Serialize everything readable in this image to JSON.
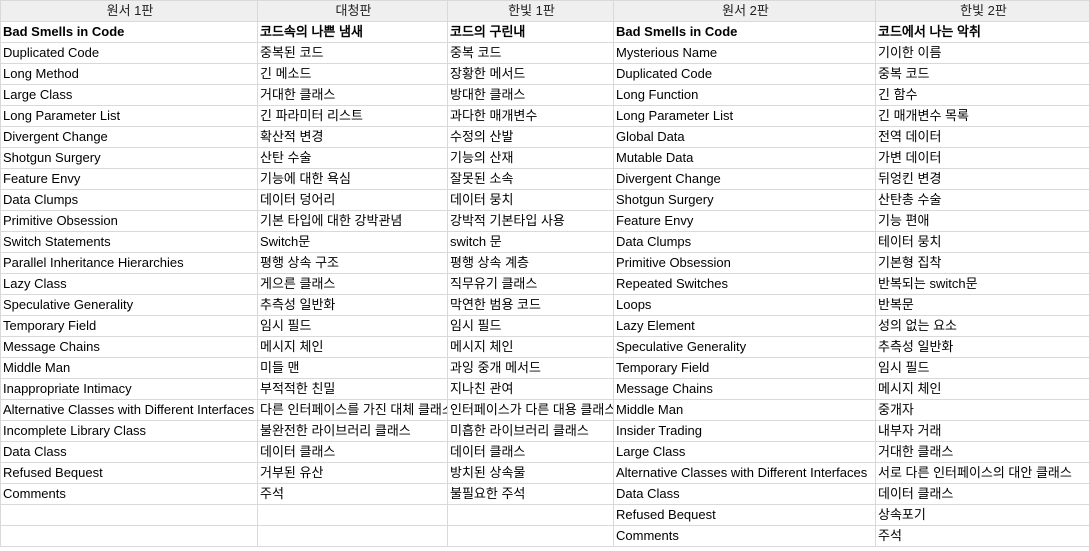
{
  "headers": [
    "원서 1판",
    "대청판",
    "한빛 1판",
    "원서 2판",
    "한빛 2판"
  ],
  "title_row": [
    "Bad Smells in Code",
    "코드속의 나쁜 냄새",
    "코드의 구린내",
    "Bad Smells in Code",
    "코드에서 나는 악취"
  ],
  "rows": [
    [
      "Duplicated Code",
      "중복된 코드",
      "중복 코드",
      "Mysterious Name",
      "기이한 이름"
    ],
    [
      "Long Method",
      "긴 메소드",
      "장황한 메서드",
      "Duplicated Code",
      "중복 코드"
    ],
    [
      "Large Class",
      "거대한 클래스",
      "방대한 클래스",
      "Long Function",
      "긴 함수"
    ],
    [
      "Long Parameter List",
      "긴 파라미터 리스트",
      "과다한 매개변수",
      "Long Parameter List",
      "긴 매개변수 목록"
    ],
    [
      "Divergent Change",
      "확산적 변경",
      "수정의 산발",
      "Global Data",
      "전역 데이터"
    ],
    [
      "Shotgun Surgery",
      "산탄 수술",
      "기능의 산재",
      "Mutable Data",
      "가변 데이터"
    ],
    [
      "Feature Envy",
      "기능에 대한 욕심",
      "잘못된 소속",
      "Divergent Change",
      "뒤엉킨 변경"
    ],
    [
      "Data Clumps",
      "데이터 덩어리",
      "데이터 뭉치",
      "Shotgun Surgery",
      "산탄총 수술"
    ],
    [
      "Primitive Obsession",
      "기본 타입에 대한 강박관념",
      "강박적 기본타입 사용",
      "Feature Envy",
      "기능 편애"
    ],
    [
      "Switch Statements",
      "Switch문",
      " switch 문",
      "Data Clumps",
      "테이터 뭉치"
    ],
    [
      "Parallel Inheritance Hierarchies",
      "평행 상속 구조",
      "평행 상속 계층",
      "Primitive Obsession",
      "기본형 집착"
    ],
    [
      "Lazy Class",
      "게으른 클래스",
      "직무유기 클래스",
      "Repeated Switches",
      "반복되는 switch문"
    ],
    [
      "Speculative Generality",
      "추측성 일반화",
      "막연한 범용 코드",
      "Loops",
      "반복문"
    ],
    [
      "Temporary Field",
      "임시 필드",
      "임시 필드",
      "Lazy Element",
      "성의 없는 요소"
    ],
    [
      "Message Chains",
      "메시지 체인",
      "메시지 체인",
      "Speculative Generality",
      "추측성 일반화"
    ],
    [
      "Middle Man",
      "미들 맨",
      "과잉 중개 메서드",
      "Temporary Field",
      "임시 필드"
    ],
    [
      "Inappropriate Intimacy",
      "부적적한 친밀",
      "지나친 관여",
      "Message Chains",
      "메시지 체인"
    ],
    [
      "Alternative Classes with Different Interfaces",
      "다른 인터페이스를 가진 대체 클래스",
      "인터페이스가 다른 대용 클래스",
      "Middle Man",
      "중개자"
    ],
    [
      "Incomplete Library Class",
      "불완전한 라이브러리 클래스",
      "미흡한 라이브러리 클래스",
      "Insider Trading",
      "내부자 거래"
    ],
    [
      "Data Class",
      "데이터 클래스",
      "데이터 클래스",
      "Large Class",
      "거대한 클래스"
    ],
    [
      "Refused Bequest",
      "거부된 유산",
      "방치된 상속물",
      "Alternative Classes with Different Interfaces",
      "서로 다른 인터페이스의 대안 클래스"
    ],
    [
      "Comments",
      "주석",
      "불필요한 주석",
      "Data Class",
      "데이터 클래스"
    ],
    [
      "",
      "",
      "",
      "Refused Bequest",
      "상속포기"
    ],
    [
      "",
      "",
      "",
      "Comments",
      "주석"
    ]
  ]
}
